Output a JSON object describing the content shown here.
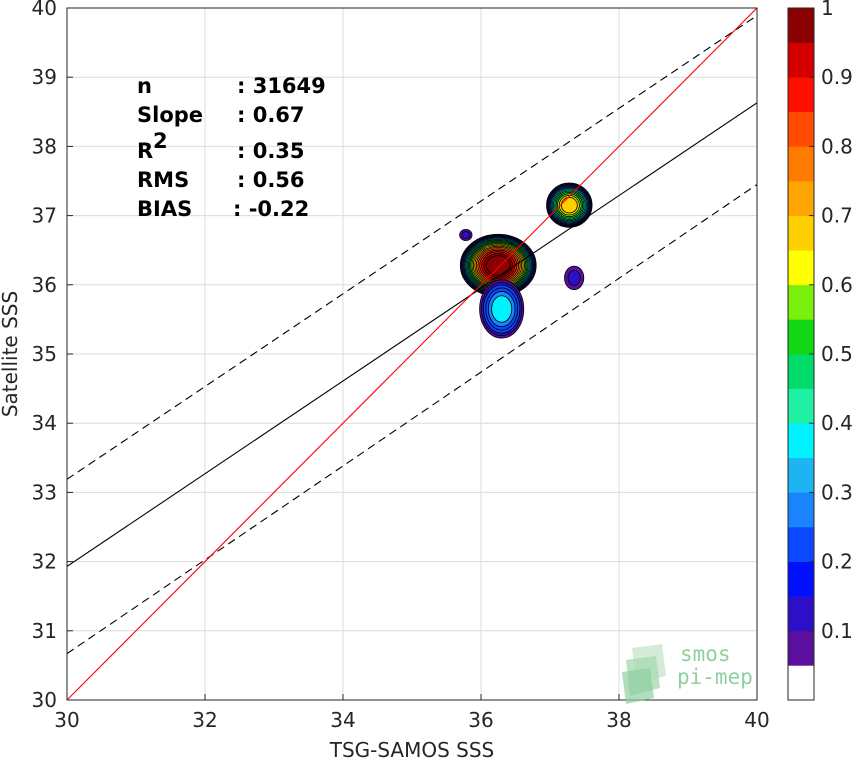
{
  "chart_data": {
    "type": "contour",
    "xlabel": "TSG-SAMOS SSS",
    "ylabel": "Satellite SSS",
    "xlim": [
      30,
      40
    ],
    "ylim": [
      30,
      40
    ],
    "xticks": [
      "30",
      "32",
      "34",
      "36",
      "38",
      "40"
    ],
    "yticks": [
      "30",
      "31",
      "32",
      "33",
      "34",
      "35",
      "36",
      "37",
      "38",
      "39",
      "40"
    ],
    "grid": true,
    "stats": [
      {
        "label": "n",
        "value": ": 31649"
      },
      {
        "label": "Slope",
        "value": ": 0.67"
      },
      {
        "label": "R",
        "value": ": 0.35"
      },
      {
        "label": "RMS",
        "value": ": 0.56"
      },
      {
        "label": "BIAS",
        "value": ": -0.22"
      }
    ],
    "r_superscript": "2",
    "lines": {
      "one_to_one": {
        "x": [
          30,
          40
        ],
        "y": [
          30,
          40
        ],
        "color": "#ff0000"
      },
      "regression": {
        "x": [
          30,
          40
        ],
        "y": [
          31.93,
          38.63
        ],
        "color": "#000000"
      },
      "upper_bound": {
        "x": [
          30,
          40
        ],
        "y": [
          33.19,
          39.89
        ],
        "color": "#000000",
        "dash": true
      },
      "lower_bound": {
        "x": [
          30,
          40
        ],
        "y": [
          30.67,
          37.45
        ],
        "color": "#000000",
        "dash": true
      }
    },
    "density_blobs": [
      {
        "cx": 36.25,
        "cy": 36.28,
        "rx": 0.55,
        "ry": 0.45,
        "peak": 1.0
      },
      {
        "cx": 36.3,
        "cy": 35.65,
        "rx": 0.32,
        "ry": 0.42,
        "peak": 0.3
      },
      {
        "cx": 37.28,
        "cy": 37.15,
        "rx": 0.33,
        "ry": 0.32,
        "peak": 0.65
      },
      {
        "cx": 37.35,
        "cy": 36.1,
        "rx": 0.14,
        "ry": 0.17,
        "peak": 0.08
      },
      {
        "cx": 35.78,
        "cy": 36.72,
        "rx": 0.09,
        "ry": 0.08,
        "peak": 0.08
      }
    ],
    "colorbar": {
      "ticks": [
        "0.1",
        "0.2",
        "0.3",
        "0.4",
        "0.5",
        "0.6",
        "0.7",
        "0.8",
        "0.9",
        "1"
      ],
      "colors": [
        "#ffffff",
        "#5b0f9e",
        "#2c0fc6",
        "#0010ff",
        "#0a49ff",
        "#1a84ff",
        "#1eb4f3",
        "#00f2ff",
        "#1ff0a4",
        "#00dc6a",
        "#13d713",
        "#7bf00c",
        "#ffff00",
        "#ffd000",
        "#ffa500",
        "#ff7b00",
        "#ff4b00",
        "#ff0f00",
        "#d40000",
        "#8b0000"
      ]
    },
    "logo": {
      "line1": "smos",
      "line2": "pi-mep"
    }
  }
}
